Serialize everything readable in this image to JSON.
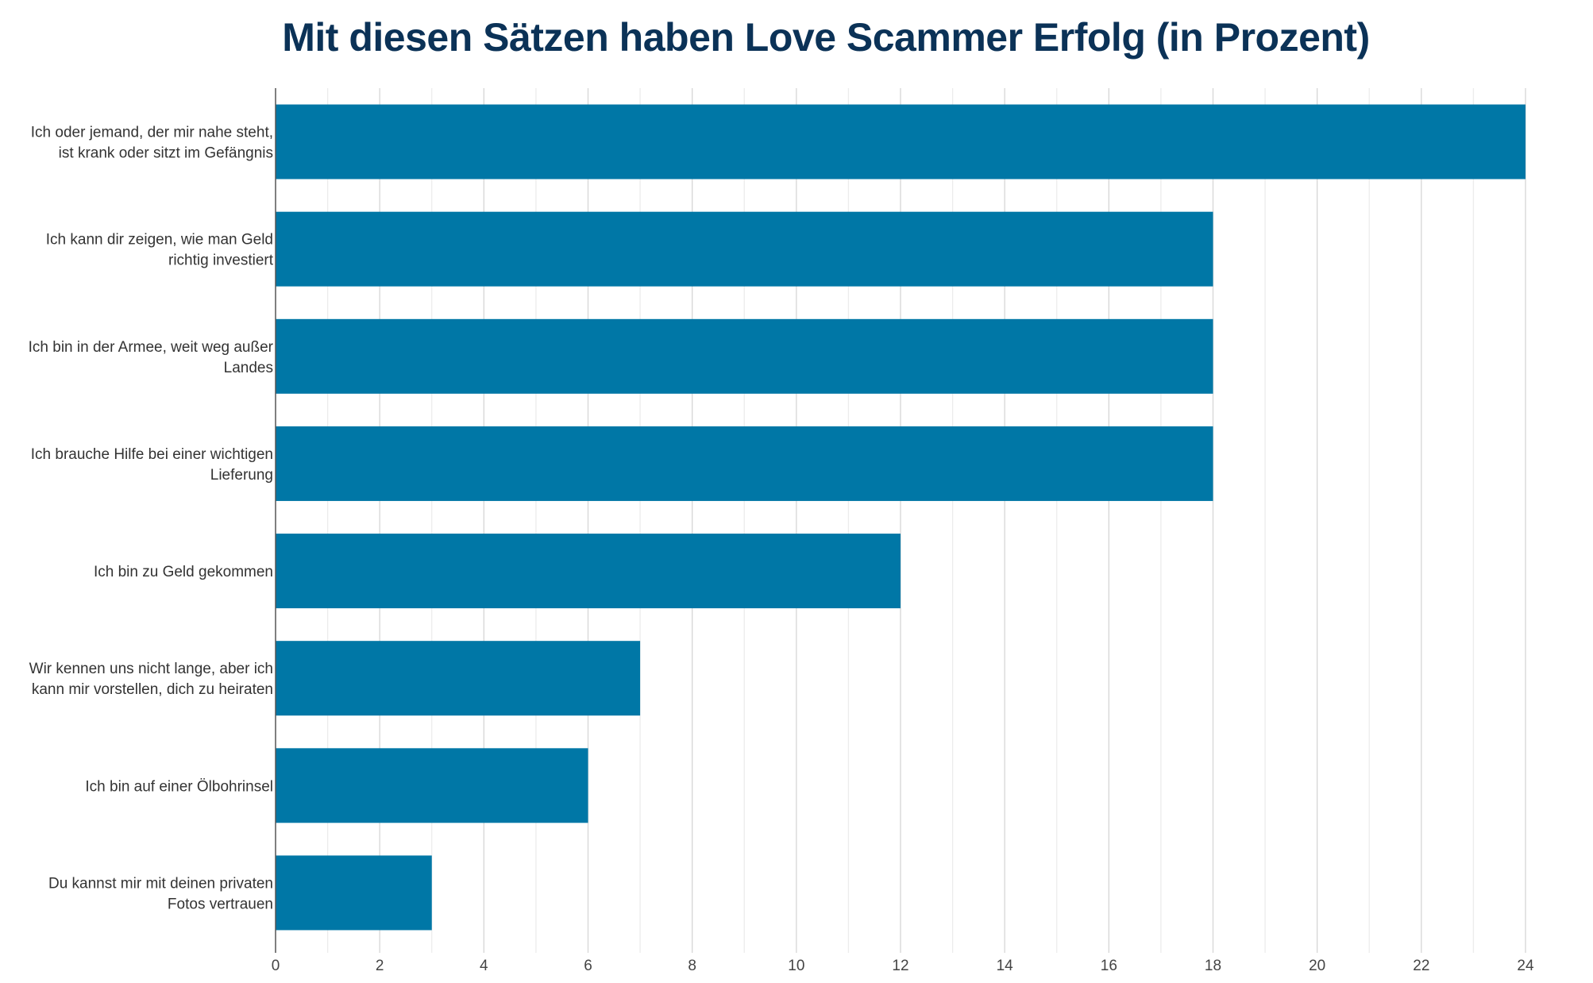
{
  "chart_data": {
    "type": "bar",
    "orientation": "horizontal",
    "title": "Mit diesen Sätzen haben Love Scammer Erfolg (in Prozent)",
    "categories": [
      [
        "Ich oder jemand, der mir nahe steht,",
        "ist krank oder sitzt im Gefängnis"
      ],
      [
        "Ich kann dir zeigen, wie man Geld",
        "richtig investiert"
      ],
      [
        "Ich bin in der Armee, weit weg außer",
        "Landes"
      ],
      [
        "Ich brauche Hilfe bei einer wichtigen",
        "Lieferung"
      ],
      [
        "Ich bin zu Geld gekommen"
      ],
      [
        "Wir kennen uns nicht lange, aber ich",
        "kann mir vorstellen, dich zu heiraten"
      ],
      [
        "Ich bin auf einer Ölbohrinsel"
      ],
      [
        "Du kannst mir mit deinen privaten",
        "Fotos vertrauen"
      ]
    ],
    "values": [
      24,
      18,
      18,
      18,
      12,
      7,
      6,
      3
    ],
    "xlim": [
      0,
      24
    ],
    "xticks": [
      "0",
      "2",
      "4",
      "6",
      "8",
      "10",
      "12",
      "14",
      "16",
      "18",
      "20",
      "22",
      "24"
    ],
    "grid": true,
    "colors": {
      "bar": "#0077a6",
      "title": "#0b3257"
    }
  }
}
